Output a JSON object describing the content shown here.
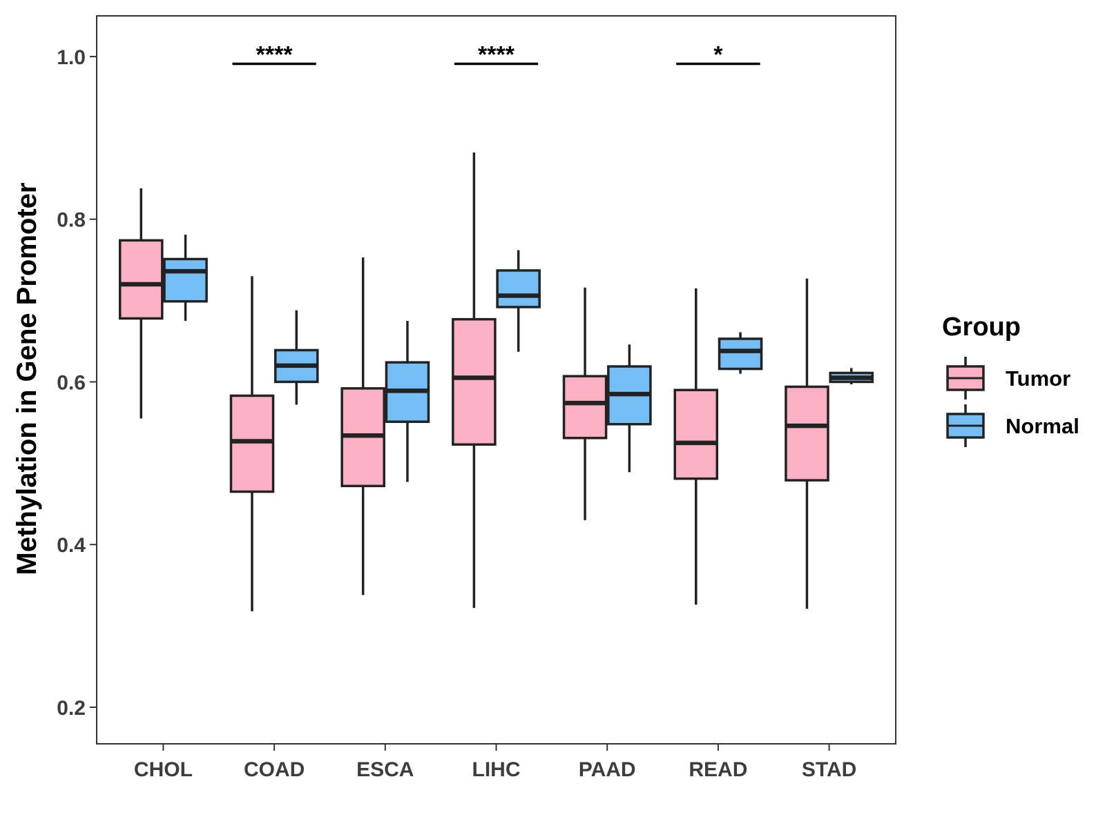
{
  "chart_data": {
    "type": "boxplot",
    "title": "",
    "xlabel": "",
    "ylabel": "Methylation in Gene Promoter",
    "ylim": [
      0.155,
      1.05
    ],
    "yticks": [
      0.2,
      0.4,
      0.6,
      0.8,
      1.0
    ],
    "ytick_labels": [
      "0.2",
      "0.4",
      "0.6",
      "0.8",
      "1.0"
    ],
    "categories": [
      "CHOL",
      "COAD",
      "ESCA",
      "LIHC",
      "PAAD",
      "READ",
      "STAD"
    ],
    "grid": false,
    "legend": {
      "title": "Group",
      "placement": "right"
    },
    "series": [
      {
        "name": "Tumor",
        "color": "#FBB1C3",
        "boxes": [
          {
            "min": 0.555,
            "q1": 0.678,
            "median": 0.72,
            "q3": 0.774,
            "max": 0.838
          },
          {
            "min": 0.318,
            "q1": 0.465,
            "median": 0.527,
            "q3": 0.583,
            "max": 0.73
          },
          {
            "min": 0.338,
            "q1": 0.472,
            "median": 0.534,
            "q3": 0.592,
            "max": 0.753
          },
          {
            "min": 0.322,
            "q1": 0.523,
            "median": 0.605,
            "q3": 0.677,
            "max": 0.882
          },
          {
            "min": 0.43,
            "q1": 0.531,
            "median": 0.574,
            "q3": 0.607,
            "max": 0.716
          },
          {
            "min": 0.326,
            "q1": 0.481,
            "median": 0.525,
            "q3": 0.59,
            "max": 0.715
          },
          {
            "min": 0.321,
            "q1": 0.479,
            "median": 0.546,
            "q3": 0.594,
            "max": 0.727
          }
        ]
      },
      {
        "name": "Normal",
        "color": "#74BEF5",
        "boxes": [
          {
            "min": 0.675,
            "q1": 0.699,
            "median": 0.736,
            "q3": 0.751,
            "max": 0.781
          },
          {
            "min": 0.572,
            "q1": 0.6,
            "median": 0.62,
            "q3": 0.639,
            "max": 0.688
          },
          {
            "min": 0.477,
            "q1": 0.551,
            "median": 0.589,
            "q3": 0.624,
            "max": 0.675
          },
          {
            "min": 0.637,
            "q1": 0.692,
            "median": 0.706,
            "q3": 0.737,
            "max": 0.762
          },
          {
            "min": 0.489,
            "q1": 0.548,
            "median": 0.585,
            "q3": 0.619,
            "max": 0.646
          },
          {
            "min": 0.61,
            "q1": 0.616,
            "median": 0.638,
            "q3": 0.653,
            "max": 0.661
          },
          {
            "min": 0.597,
            "q1": 0.6,
            "median": 0.605,
            "q3": 0.611,
            "max": 0.617
          }
        ]
      }
    ],
    "significance": [
      {
        "category": "COAD",
        "label": "****",
        "y": 0.991
      },
      {
        "category": "LIHC",
        "label": "****",
        "y": 0.991
      },
      {
        "category": "READ",
        "label": "*",
        "y": 0.991
      }
    ]
  }
}
